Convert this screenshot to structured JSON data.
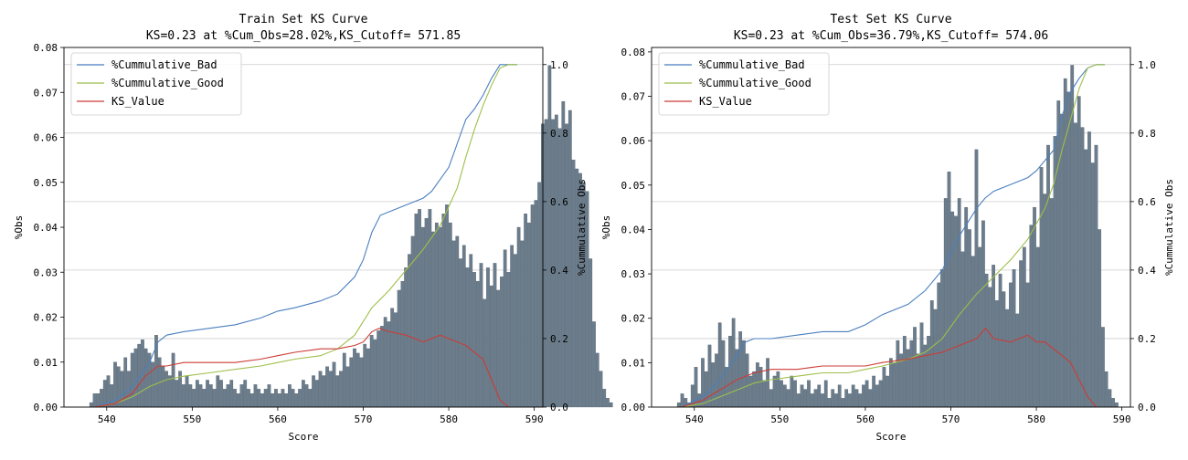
{
  "chart_data": [
    {
      "type": "bar",
      "title": "Train Set KS Curve",
      "subtitle": "KS=0.23 at %Cum_Obs=28.02%,KS_Cutoff= 571.85",
      "xlabel": "Score",
      "ylabel": "%Obs",
      "y2label": "%Cummulative Obs",
      "xlim": [
        535,
        591
      ],
      "ylim": [
        0,
        0.08
      ],
      "y2lim": [
        0,
        1.05
      ],
      "xticks": [
        540,
        550,
        560,
        570,
        580,
        590
      ],
      "yticks": [
        0.0,
        0.01,
        0.02,
        0.03,
        0.04,
        0.05,
        0.06,
        0.07,
        0.08
      ],
      "y2ticks": [
        0.0,
        0.2,
        0.4,
        0.6,
        0.8,
        1.0
      ],
      "grid": true,
      "legend_position": "top-left",
      "bar_color": "#6b7d8c",
      "bars": {
        "start": 538.0,
        "width": 0.4,
        "values": [
          0.001,
          0.003,
          0.003,
          0.004,
          0.006,
          0.007,
          0.005,
          0.01,
          0.009,
          0.008,
          0.011,
          0.008,
          0.012,
          0.013,
          0.014,
          0.015,
          0.013,
          0.012,
          0.01,
          0.016,
          0.011,
          0.009,
          0.008,
          0.007,
          0.012,
          0.006,
          0.008,
          0.005,
          0.007,
          0.005,
          0.004,
          0.006,
          0.005,
          0.004,
          0.006,
          0.005,
          0.004,
          0.007,
          0.006,
          0.004,
          0.005,
          0.006,
          0.004,
          0.003,
          0.005,
          0.006,
          0.004,
          0.003,
          0.005,
          0.004,
          0.003,
          0.004,
          0.005,
          0.003,
          0.004,
          0.003,
          0.004,
          0.003,
          0.005,
          0.004,
          0.003,
          0.004,
          0.006,
          0.005,
          0.004,
          0.007,
          0.006,
          0.008,
          0.007,
          0.009,
          0.008,
          0.01,
          0.007,
          0.008,
          0.012,
          0.009,
          0.011,
          0.013,
          0.012,
          0.011,
          0.014,
          0.013,
          0.016,
          0.015,
          0.017,
          0.018,
          0.02,
          0.019,
          0.022,
          0.021,
          0.026,
          0.028,
          0.031,
          0.034,
          0.038,
          0.043,
          0.044,
          0.04,
          0.042,
          0.044,
          0.039,
          0.041,
          0.04,
          0.043,
          0.045,
          0.041,
          0.037,
          0.038,
          0.033,
          0.036,
          0.031,
          0.034,
          0.03,
          0.028,
          0.032,
          0.024,
          0.031,
          0.027,
          0.032,
          0.026,
          0.029,
          0.035,
          0.03,
          0.036,
          0.034,
          0.04,
          0.037,
          0.043,
          0.041,
          0.045,
          0.046,
          0.05,
          0.063,
          0.064,
          0.076,
          0.064,
          0.065,
          0.062,
          0.068,
          0.063,
          0.066,
          0.055,
          0.053,
          0.052,
          0.05,
          0.048,
          0.033,
          0.019,
          0.012,
          0.008,
          0.004,
          0.002,
          0.001
        ]
      },
      "series": [
        {
          "name": "%Cummulative_Bad",
          "axis": "right",
          "color": "#4a7fbf",
          "x": [
            538.5,
            541,
            543,
            545,
            546,
            547,
            549,
            552,
            555,
            558,
            560,
            562,
            565,
            567,
            569,
            570,
            571,
            572,
            573,
            575,
            577,
            578,
            580,
            582,
            583,
            584,
            585,
            586,
            587,
            588
          ],
          "y": [
            0.0,
            0.02,
            0.06,
            0.13,
            0.19,
            0.21,
            0.22,
            0.23,
            0.24,
            0.26,
            0.28,
            0.29,
            0.31,
            0.33,
            0.38,
            0.43,
            0.51,
            0.56,
            0.57,
            0.59,
            0.61,
            0.63,
            0.7,
            0.84,
            0.87,
            0.91,
            0.96,
            1.0,
            1.0,
            1.0
          ]
        },
        {
          "name": "%Cummulative_Good",
          "axis": "right",
          "color": "#9ebf4a",
          "x": [
            538.5,
            541,
            543,
            545,
            547,
            549,
            552,
            555,
            558,
            560,
            562,
            565,
            567,
            569,
            571,
            573,
            575,
            577,
            579,
            581,
            582,
            583,
            584,
            585,
            586,
            587,
            588
          ],
          "y": [
            0.0,
            0.01,
            0.03,
            0.06,
            0.08,
            0.09,
            0.1,
            0.11,
            0.12,
            0.13,
            0.14,
            0.15,
            0.17,
            0.21,
            0.29,
            0.34,
            0.4,
            0.46,
            0.53,
            0.64,
            0.73,
            0.81,
            0.88,
            0.94,
            0.99,
            1.0,
            1.0
          ]
        },
        {
          "name": "KS_Value",
          "axis": "right",
          "color": "#cc3b36",
          "x": [
            538.5,
            541,
            543,
            544.5,
            546,
            547,
            549,
            552,
            555,
            558,
            560,
            562,
            565,
            567,
            569,
            570,
            571,
            571.85,
            573,
            575,
            577,
            578,
            579,
            580,
            582,
            584,
            585,
            586,
            587
          ],
          "y": [
            0.0,
            0.01,
            0.04,
            0.09,
            0.12,
            0.12,
            0.13,
            0.13,
            0.13,
            0.14,
            0.15,
            0.16,
            0.17,
            0.17,
            0.18,
            0.19,
            0.22,
            0.23,
            0.22,
            0.21,
            0.19,
            0.2,
            0.21,
            0.2,
            0.18,
            0.14,
            0.08,
            0.02,
            0.0
          ]
        }
      ]
    },
    {
      "type": "bar",
      "title": "Test Set KS Curve",
      "subtitle": "KS=0.23 at %Cum_Obs=36.79%,KS_Cutoff= 574.06",
      "xlabel": "Score",
      "ylabel": "%Obs",
      "y2label": "%Cummulative Obs",
      "xlim": [
        535,
        591
      ],
      "ylim": [
        0,
        0.081
      ],
      "y2lim": [
        0,
        1.05
      ],
      "xticks": [
        540,
        550,
        560,
        570,
        580,
        590
      ],
      "yticks": [
        0.0,
        0.01,
        0.02,
        0.03,
        0.04,
        0.05,
        0.06,
        0.07,
        0.08
      ],
      "y2ticks": [
        0.0,
        0.2,
        0.4,
        0.6,
        0.8,
        1.0
      ],
      "grid": true,
      "legend_position": "top-left",
      "bar_color": "#6b7d8c",
      "bars": {
        "start": 538.0,
        "width": 0.4,
        "values": [
          0.001,
          0.003,
          0.002,
          0.001,
          0.005,
          0.009,
          0.003,
          0.011,
          0.008,
          0.014,
          0.01,
          0.012,
          0.019,
          0.015,
          0.009,
          0.016,
          0.02,
          0.013,
          0.017,
          0.015,
          0.012,
          0.007,
          0.008,
          0.01,
          0.009,
          0.006,
          0.011,
          0.004,
          0.007,
          0.008,
          0.006,
          0.005,
          0.004,
          0.007,
          0.006,
          0.003,
          0.005,
          0.004,
          0.006,
          0.003,
          0.004,
          0.005,
          0.003,
          0.006,
          0.002,
          0.004,
          0.003,
          0.005,
          0.002,
          0.004,
          0.003,
          0.005,
          0.004,
          0.003,
          0.005,
          0.006,
          0.004,
          0.007,
          0.005,
          0.006,
          0.009,
          0.007,
          0.011,
          0.01,
          0.015,
          0.012,
          0.016,
          0.013,
          0.015,
          0.018,
          0.012,
          0.019,
          0.014,
          0.016,
          0.024,
          0.022,
          0.028,
          0.031,
          0.047,
          0.053,
          0.044,
          0.043,
          0.047,
          0.035,
          0.045,
          0.04,
          0.034,
          0.058,
          0.036,
          0.042,
          0.03,
          0.027,
          0.032,
          0.024,
          0.03,
          0.026,
          0.022,
          0.028,
          0.031,
          0.021,
          0.033,
          0.036,
          0.028,
          0.041,
          0.045,
          0.036,
          0.054,
          0.048,
          0.059,
          0.047,
          0.061,
          0.069,
          0.066,
          0.074,
          0.071,
          0.077,
          0.064,
          0.07,
          0.063,
          0.058,
          0.062,
          0.055,
          0.059,
          0.04,
          0.018,
          0.008,
          0.004,
          0.002,
          0.001
        ]
      },
      "series": [
        {
          "name": "%Cummulative_Bad",
          "axis": "right",
          "color": "#4a7fbf",
          "x": [
            538.5,
            541,
            543,
            545,
            546,
            547,
            549,
            552,
            555,
            558,
            560,
            562,
            565,
            567,
            569,
            570,
            571,
            572,
            573,
            574,
            575,
            577,
            579,
            580,
            582,
            583,
            584,
            585,
            586,
            587,
            588
          ],
          "y": [
            0.0,
            0.03,
            0.08,
            0.15,
            0.19,
            0.2,
            0.2,
            0.21,
            0.22,
            0.22,
            0.24,
            0.27,
            0.3,
            0.34,
            0.4,
            0.45,
            0.5,
            0.54,
            0.58,
            0.61,
            0.63,
            0.65,
            0.67,
            0.69,
            0.75,
            0.85,
            0.92,
            0.96,
            0.99,
            1.0,
            1.0
          ]
        },
        {
          "name": "%Cummulative_Good",
          "axis": "right",
          "color": "#9ebf4a",
          "x": [
            538.5,
            541,
            543,
            545,
            547,
            549,
            552,
            555,
            558,
            560,
            562,
            565,
            567,
            569,
            571,
            573,
            575,
            577,
            579,
            581,
            582,
            583,
            584,
            585,
            586,
            587,
            588
          ],
          "y": [
            0.0,
            0.01,
            0.03,
            0.05,
            0.07,
            0.08,
            0.09,
            0.1,
            0.1,
            0.11,
            0.12,
            0.14,
            0.16,
            0.2,
            0.27,
            0.33,
            0.38,
            0.43,
            0.49,
            0.58,
            0.65,
            0.75,
            0.84,
            0.93,
            0.99,
            1.0,
            1.0
          ]
        },
        {
          "name": "KS_Value",
          "axis": "right",
          "color": "#cc3b36",
          "x": [
            538.5,
            541,
            543,
            545,
            547,
            549,
            552,
            555,
            558,
            560,
            562,
            565,
            567,
            569,
            570,
            571,
            573,
            574.06,
            575,
            577,
            579,
            580,
            581,
            582,
            584,
            585,
            586,
            587
          ],
          "y": [
            0.0,
            0.02,
            0.05,
            0.08,
            0.1,
            0.11,
            0.11,
            0.12,
            0.12,
            0.12,
            0.13,
            0.14,
            0.15,
            0.16,
            0.17,
            0.18,
            0.2,
            0.23,
            0.2,
            0.19,
            0.21,
            0.19,
            0.19,
            0.17,
            0.13,
            0.08,
            0.03,
            0.0
          ]
        }
      ]
    }
  ]
}
